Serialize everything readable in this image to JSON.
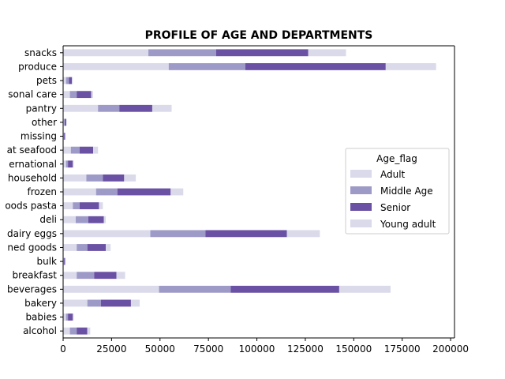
{
  "chart_data": {
    "type": "bar",
    "orientation": "horizontal",
    "stacked": true,
    "title": "PROFILE OF AGE AND DEPARTMENTS",
    "xlabel": "",
    "ylabel": "",
    "xlim": [
      0,
      202000
    ],
    "x_ticks": [
      0,
      25000,
      50000,
      75000,
      100000,
      125000,
      150000,
      175000,
      200000
    ],
    "x_tick_labels": [
      "0",
      "25000",
      "50000",
      "75000",
      "100000",
      "125000",
      "150000",
      "175000",
      "200000"
    ],
    "categories": [
      "alcohol",
      "babies",
      "bakery",
      "beverages",
      "breakfast",
      "bulk",
      "canned goods",
      "dairy eggs",
      "deli",
      "dry goods pasta",
      "frozen",
      "household",
      "international",
      "meat seafood",
      "missing",
      "other",
      "pantry",
      "personal care",
      "pets",
      "produce",
      "snacks"
    ],
    "category_labels_visible": [
      "alcohol",
      "babies",
      "bakery",
      "beverages",
      "breakfast",
      "bulk",
      "ned goods",
      "dairy eggs",
      "deli",
      "oods pasta",
      "frozen",
      "household",
      "ernational",
      "at seafood",
      "missing",
      "other",
      "pantry",
      "sonal care",
      "pets",
      "produce",
      "snacks"
    ],
    "series": [
      {
        "name": "Adult",
        "color": "#dadaeb",
        "values": [
          3500,
          1500,
          12500,
          49500,
          7000,
          300,
          7000,
          45000,
          6500,
          5000,
          17000,
          12000,
          1500,
          4000,
          300,
          500,
          18000,
          3500,
          1500,
          54500,
          44000
        ]
      },
      {
        "name": "Middle Age",
        "color": "#9e9ac8",
        "values": [
          3500,
          1000,
          7000,
          37000,
          9000,
          200,
          5500,
          28500,
          6500,
          3500,
          11000,
          8500,
          1000,
          4500,
          200,
          300,
          11000,
          3500,
          1500,
          39500,
          35000
        ]
      },
      {
        "name": "Senior",
        "color": "#6a51a3",
        "values": [
          5500,
          2500,
          15500,
          56000,
          11500,
          500,
          9500,
          42000,
          8000,
          10000,
          27500,
          11000,
          2500,
          7000,
          500,
          800,
          17000,
          7500,
          1500,
          72500,
          47500
        ]
      },
      {
        "name": "Young adult",
        "color": "#dadaeb",
        "values": [
          1500,
          500,
          4500,
          26500,
          4500,
          200,
          2500,
          17000,
          1000,
          2000,
          6500,
          6000,
          500,
          2500,
          200,
          200,
          10000,
          1000,
          500,
          26000,
          19500
        ]
      }
    ],
    "legend": {
      "title": "Age_flag",
      "placement": "center-right"
    },
    "grid": false
  }
}
